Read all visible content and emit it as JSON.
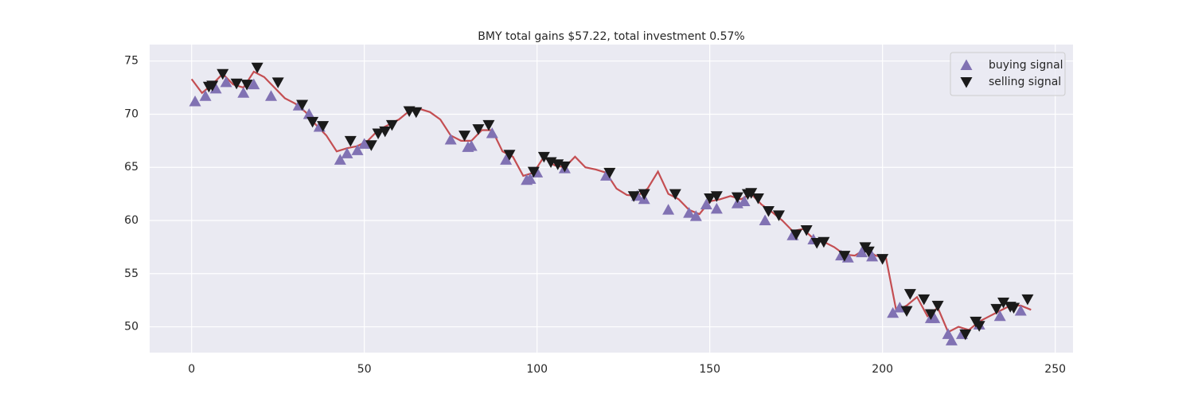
{
  "chart_data": {
    "type": "line",
    "title": "BMY total gains $57.22, total investment 0.57%",
    "xlim": [
      -12.15,
      255.15
    ],
    "xticks": [
      0,
      50,
      100,
      150,
      200,
      250
    ],
    "ylim": [
      47.57,
      76.55
    ],
    "yticks": [
      50,
      55,
      60,
      65,
      70,
      75
    ],
    "grid": true,
    "legend": "upper right",
    "background": "#eaeaf2",
    "series": [
      {
        "color": "#c44e52",
        "kind": "line",
        "x": [
          0,
          3,
          6,
          9,
          12,
          15,
          18,
          21,
          24,
          27,
          30,
          33,
          36,
          39,
          42,
          45,
          48,
          51,
          54,
          57,
          60,
          63,
          66,
          69,
          72,
          75,
          78,
          81,
          84,
          87,
          90,
          93,
          96,
          99,
          102,
          105,
          108,
          111,
          114,
          117,
          120,
          123,
          126,
          129,
          132,
          135,
          138,
          141,
          144,
          147,
          150,
          153,
          156,
          159,
          162,
          165,
          168,
          171,
          174,
          177,
          180,
          183,
          186,
          189,
          192,
          195,
          198,
          201,
          204,
          207,
          210,
          213,
          216,
          219,
          222,
          225,
          228,
          231,
          234,
          237,
          240,
          243
        ],
        "values": [
          73.3,
          72.0,
          72.8,
          73.8,
          72.8,
          72.5,
          74.0,
          73.5,
          72.5,
          71.5,
          71.0,
          70.2,
          69.0,
          68.0,
          66.5,
          66.8,
          67.0,
          67.5,
          68.5,
          69.0,
          69.5,
          70.3,
          70.5,
          70.2,
          69.5,
          68.0,
          67.5,
          67.5,
          68.5,
          68.5,
          66.5,
          66.0,
          64.2,
          64.5,
          66.0,
          65.2,
          65.0,
          66.0,
          65.0,
          64.8,
          64.5,
          63.0,
          62.4,
          62.3,
          63.0,
          64.6,
          62.5,
          62.0,
          61.0,
          60.6,
          61.8,
          62.0,
          62.3,
          62.0,
          62.5,
          61.5,
          60.8,
          60.0,
          59.0,
          59.2,
          58.3,
          58.0,
          57.5,
          56.8,
          56.7,
          57.3,
          56.7,
          56.5,
          51.5,
          52.0,
          52.8,
          51.0,
          51.8,
          49.5,
          50.0,
          49.7,
          50.5,
          51.0,
          51.5,
          52.0,
          52.0,
          51.6
        ]
      },
      {
        "name": "buying signal",
        "color": "#8172b3",
        "kind": "up",
        "x": [
          1,
          4,
          7,
          10,
          15,
          18,
          23,
          31,
          34,
          37,
          43,
          45,
          48,
          50,
          75,
          80,
          81,
          87,
          91,
          97,
          98,
          100,
          108,
          120,
          129,
          131,
          138,
          144,
          146,
          149,
          152,
          158,
          160,
          166,
          174,
          180,
          188,
          190,
          194,
          197,
          203,
          205,
          214,
          215,
          219,
          220,
          223,
          228,
          234,
          240
        ],
        "values": [
          71.2,
          71.7,
          72.4,
          73.0,
          72.0,
          72.8,
          71.7,
          70.8,
          70.0,
          68.8,
          65.7,
          66.3,
          66.6,
          67.2,
          67.6,
          66.9,
          67.0,
          68.2,
          65.7,
          63.8,
          63.9,
          64.5,
          64.9,
          64.2,
          62.3,
          62.0,
          61.0,
          60.7,
          60.4,
          61.5,
          61.1,
          61.6,
          61.8,
          60.0,
          58.6,
          58.2,
          56.7,
          56.5,
          57.0,
          56.6,
          51.3,
          51.8,
          50.8,
          50.8,
          49.3,
          48.7,
          49.3,
          50.2,
          51.0,
          51.5
        ]
      },
      {
        "name": "selling signal",
        "color": "#1a1a1a",
        "kind": "down",
        "x": [
          5,
          6,
          9,
          13,
          16,
          19,
          25,
          32,
          35,
          38,
          46,
          52,
          54,
          56,
          58,
          63,
          65,
          79,
          83,
          86,
          92,
          99,
          102,
          104,
          106,
          108,
          121,
          128,
          131,
          140,
          150,
          152,
          158,
          161,
          162,
          164,
          167,
          170,
          175,
          178,
          181,
          183,
          189,
          195,
          196,
          200,
          207,
          208,
          212,
          214,
          216,
          224,
          227,
          228,
          233,
          235,
          237,
          238,
          242
        ],
        "values": [
          72.6,
          72.7,
          73.8,
          72.9,
          72.8,
          74.4,
          73.0,
          70.9,
          69.3,
          68.9,
          67.5,
          67.1,
          68.2,
          68.4,
          69.0,
          70.3,
          70.2,
          68.0,
          68.6,
          69.0,
          66.2,
          64.6,
          66.0,
          65.5,
          65.3,
          65.1,
          64.5,
          62.3,
          62.5,
          62.5,
          62.1,
          62.3,
          62.2,
          62.5,
          62.6,
          62.1,
          60.9,
          60.5,
          58.7,
          59.1,
          57.9,
          58.0,
          56.7,
          57.5,
          57.1,
          56.4,
          51.5,
          53.1,
          52.6,
          51.2,
          52.0,
          49.3,
          50.5,
          50.1,
          51.7,
          52.3,
          51.9,
          51.8,
          52.6
        ]
      }
    ]
  }
}
